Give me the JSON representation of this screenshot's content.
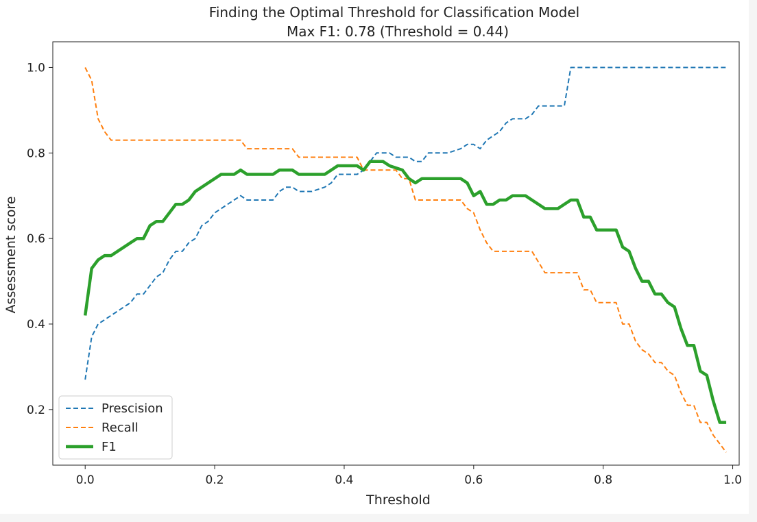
{
  "chart_data": {
    "type": "line",
    "title": "Finding the Optimal Threshold for Classification Model",
    "subtitle": "Max F1: 0.78 (Threshold = 0.44)",
    "xlabel": "Threshold",
    "ylabel": "Assessment score",
    "xlim": [
      -0.05,
      1.01
    ],
    "ylim": [
      0.07,
      1.06
    ],
    "x_ticks": [
      "0.0",
      "0.2",
      "0.4",
      "0.6",
      "0.8",
      "1.0"
    ],
    "y_ticks": [
      "0.2",
      "0.4",
      "0.6",
      "0.8",
      "1.0"
    ],
    "grid": false,
    "legend_position": "lower-left",
    "series": [
      {
        "name": "Prescision",
        "color": "#1f77b4",
        "style": "dashed",
        "points": [
          [
            0.0,
            0.27
          ],
          [
            0.01,
            0.37
          ],
          [
            0.02,
            0.4
          ],
          [
            0.03,
            0.41
          ],
          [
            0.04,
            0.42
          ],
          [
            0.05,
            0.43
          ],
          [
            0.06,
            0.44
          ],
          [
            0.07,
            0.45
          ],
          [
            0.08,
            0.47
          ],
          [
            0.09,
            0.47
          ],
          [
            0.1,
            0.49
          ],
          [
            0.11,
            0.51
          ],
          [
            0.12,
            0.52
          ],
          [
            0.13,
            0.55
          ],
          [
            0.14,
            0.57
          ],
          [
            0.15,
            0.57
          ],
          [
            0.16,
            0.59
          ],
          [
            0.17,
            0.6
          ],
          [
            0.18,
            0.63
          ],
          [
            0.19,
            0.64
          ],
          [
            0.2,
            0.66
          ],
          [
            0.21,
            0.67
          ],
          [
            0.22,
            0.68
          ],
          [
            0.23,
            0.69
          ],
          [
            0.24,
            0.7
          ],
          [
            0.25,
            0.69
          ],
          [
            0.27,
            0.69
          ],
          [
            0.29,
            0.69
          ],
          [
            0.3,
            0.71
          ],
          [
            0.31,
            0.72
          ],
          [
            0.32,
            0.72
          ],
          [
            0.33,
            0.71
          ],
          [
            0.35,
            0.71
          ],
          [
            0.37,
            0.72
          ],
          [
            0.38,
            0.73
          ],
          [
            0.39,
            0.75
          ],
          [
            0.4,
            0.75
          ],
          [
            0.42,
            0.75
          ],
          [
            0.43,
            0.76
          ],
          [
            0.44,
            0.78
          ],
          [
            0.45,
            0.8
          ],
          [
            0.47,
            0.8
          ],
          [
            0.48,
            0.79
          ],
          [
            0.5,
            0.79
          ],
          [
            0.51,
            0.78
          ],
          [
            0.52,
            0.78
          ],
          [
            0.53,
            0.8
          ],
          [
            0.54,
            0.8
          ],
          [
            0.56,
            0.8
          ],
          [
            0.58,
            0.81
          ],
          [
            0.59,
            0.82
          ],
          [
            0.6,
            0.82
          ],
          [
            0.61,
            0.81
          ],
          [
            0.62,
            0.83
          ],
          [
            0.63,
            0.84
          ],
          [
            0.64,
            0.85
          ],
          [
            0.65,
            0.87
          ],
          [
            0.66,
            0.88
          ],
          [
            0.68,
            0.88
          ],
          [
            0.69,
            0.89
          ],
          [
            0.7,
            0.91
          ],
          [
            0.72,
            0.91
          ],
          [
            0.74,
            0.91
          ],
          [
            0.75,
            1.0
          ],
          [
            0.8,
            1.0
          ],
          [
            0.9,
            1.0
          ],
          [
            0.99,
            1.0
          ]
        ]
      },
      {
        "name": "Recall",
        "color": "#ff7f0e",
        "style": "dashed",
        "points": [
          [
            0.0,
            1.0
          ],
          [
            0.01,
            0.97
          ],
          [
            0.02,
            0.88
          ],
          [
            0.03,
            0.85
          ],
          [
            0.04,
            0.83
          ],
          [
            0.1,
            0.83
          ],
          [
            0.2,
            0.83
          ],
          [
            0.24,
            0.83
          ],
          [
            0.25,
            0.81
          ],
          [
            0.3,
            0.81
          ],
          [
            0.32,
            0.81
          ],
          [
            0.33,
            0.79
          ],
          [
            0.42,
            0.79
          ],
          [
            0.43,
            0.76
          ],
          [
            0.48,
            0.76
          ],
          [
            0.49,
            0.74
          ],
          [
            0.5,
            0.74
          ],
          [
            0.51,
            0.69
          ],
          [
            0.58,
            0.69
          ],
          [
            0.59,
            0.67
          ],
          [
            0.6,
            0.66
          ],
          [
            0.61,
            0.62
          ],
          [
            0.62,
            0.59
          ],
          [
            0.63,
            0.57
          ],
          [
            0.66,
            0.57
          ],
          [
            0.69,
            0.57
          ],
          [
            0.71,
            0.52
          ],
          [
            0.76,
            0.52
          ],
          [
            0.77,
            0.48
          ],
          [
            0.78,
            0.48
          ],
          [
            0.79,
            0.45
          ],
          [
            0.82,
            0.45
          ],
          [
            0.83,
            0.4
          ],
          [
            0.84,
            0.4
          ],
          [
            0.85,
            0.36
          ],
          [
            0.86,
            0.34
          ],
          [
            0.87,
            0.33
          ],
          [
            0.88,
            0.31
          ],
          [
            0.89,
            0.31
          ],
          [
            0.9,
            0.29
          ],
          [
            0.91,
            0.28
          ],
          [
            0.92,
            0.24
          ],
          [
            0.93,
            0.21
          ],
          [
            0.94,
            0.21
          ],
          [
            0.95,
            0.17
          ],
          [
            0.96,
            0.17
          ],
          [
            0.97,
            0.14
          ],
          [
            0.98,
            0.12
          ],
          [
            0.99,
            0.1
          ]
        ]
      },
      {
        "name": "F1",
        "color": "#2ca02c",
        "style": "solid",
        "points": [
          [
            0.0,
            0.42
          ],
          [
            0.01,
            0.53
          ],
          [
            0.02,
            0.55
          ],
          [
            0.03,
            0.56
          ],
          [
            0.04,
            0.56
          ],
          [
            0.05,
            0.57
          ],
          [
            0.06,
            0.58
          ],
          [
            0.07,
            0.59
          ],
          [
            0.08,
            0.6
          ],
          [
            0.09,
            0.6
          ],
          [
            0.1,
            0.63
          ],
          [
            0.11,
            0.64
          ],
          [
            0.12,
            0.64
          ],
          [
            0.13,
            0.66
          ],
          [
            0.14,
            0.68
          ],
          [
            0.15,
            0.68
          ],
          [
            0.16,
            0.69
          ],
          [
            0.17,
            0.71
          ],
          [
            0.18,
            0.72
          ],
          [
            0.19,
            0.73
          ],
          [
            0.2,
            0.74
          ],
          [
            0.21,
            0.75
          ],
          [
            0.22,
            0.75
          ],
          [
            0.23,
            0.75
          ],
          [
            0.24,
            0.76
          ],
          [
            0.25,
            0.75
          ],
          [
            0.27,
            0.75
          ],
          [
            0.29,
            0.75
          ],
          [
            0.3,
            0.76
          ],
          [
            0.31,
            0.76
          ],
          [
            0.32,
            0.76
          ],
          [
            0.33,
            0.75
          ],
          [
            0.35,
            0.75
          ],
          [
            0.37,
            0.75
          ],
          [
            0.38,
            0.76
          ],
          [
            0.39,
            0.77
          ],
          [
            0.4,
            0.77
          ],
          [
            0.42,
            0.77
          ],
          [
            0.43,
            0.76
          ],
          [
            0.44,
            0.78
          ],
          [
            0.45,
            0.78
          ],
          [
            0.46,
            0.78
          ],
          [
            0.47,
            0.77
          ],
          [
            0.49,
            0.76
          ],
          [
            0.5,
            0.74
          ],
          [
            0.51,
            0.73
          ],
          [
            0.52,
            0.74
          ],
          [
            0.53,
            0.74
          ],
          [
            0.56,
            0.74
          ],
          [
            0.58,
            0.74
          ],
          [
            0.59,
            0.73
          ],
          [
            0.6,
            0.7
          ],
          [
            0.61,
            0.71
          ],
          [
            0.62,
            0.68
          ],
          [
            0.63,
            0.68
          ],
          [
            0.64,
            0.69
          ],
          [
            0.65,
            0.69
          ],
          [
            0.66,
            0.7
          ],
          [
            0.68,
            0.7
          ],
          [
            0.69,
            0.69
          ],
          [
            0.7,
            0.68
          ],
          [
            0.71,
            0.67
          ],
          [
            0.73,
            0.67
          ],
          [
            0.74,
            0.68
          ],
          [
            0.75,
            0.69
          ],
          [
            0.76,
            0.69
          ],
          [
            0.77,
            0.65
          ],
          [
            0.78,
            0.65
          ],
          [
            0.79,
            0.62
          ],
          [
            0.8,
            0.62
          ],
          [
            0.82,
            0.62
          ],
          [
            0.83,
            0.58
          ],
          [
            0.84,
            0.57
          ],
          [
            0.85,
            0.53
          ],
          [
            0.86,
            0.5
          ],
          [
            0.87,
            0.5
          ],
          [
            0.88,
            0.47
          ],
          [
            0.89,
            0.47
          ],
          [
            0.9,
            0.45
          ],
          [
            0.91,
            0.44
          ],
          [
            0.92,
            0.39
          ],
          [
            0.93,
            0.35
          ],
          [
            0.94,
            0.35
          ],
          [
            0.95,
            0.29
          ],
          [
            0.96,
            0.28
          ],
          [
            0.97,
            0.22
          ],
          [
            0.98,
            0.17
          ],
          [
            0.99,
            0.17
          ]
        ]
      }
    ]
  }
}
